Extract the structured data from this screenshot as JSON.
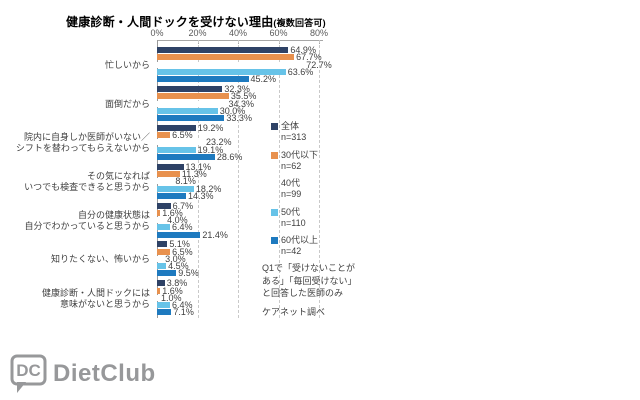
{
  "title": {
    "main": "健康診断・人間ドックを受けない理由",
    "suffix": "(複数回答可)"
  },
  "chart_data": {
    "type": "bar",
    "orientation": "horizontal",
    "title": "健康診断・人間ドックを受けない理由(複数回答可)",
    "xlim": [
      0,
      80
    ],
    "x_ticks": [
      "0%",
      "20%",
      "40%",
      "60%",
      "80%"
    ],
    "grid": "dashed-vertical",
    "legend_position": "right",
    "categories": [
      {
        "lines": [
          "忙しいから"
        ]
      },
      {
        "lines": [
          "面倒だから"
        ]
      },
      {
        "lines": [
          "院内に自身しか医師がいない／",
          "シフトを替わってもらえないから"
        ]
      },
      {
        "lines": [
          "その気になれば",
          "いつでも検査できると思うから"
        ]
      },
      {
        "lines": [
          "自分の健康状態は",
          "自分でわかっていると思うから"
        ]
      },
      {
        "lines": [
          "知りたくない、怖いから"
        ]
      },
      {
        "lines": [
          "健康診断・人間ドックには",
          "意味がないと思うから"
        ]
      }
    ],
    "series": [
      {
        "name": "全体",
        "n_label": "n=313",
        "color": "#2e4266",
        "values": [
          64.9,
          32.3,
          19.2,
          13.1,
          6.7,
          5.1,
          3.8
        ]
      },
      {
        "name": "30代以下",
        "n_label": "n=62",
        "color": "#e8914e",
        "values": [
          67.7,
          35.5,
          6.5,
          11.3,
          1.6,
          6.5,
          1.6
        ]
      },
      {
        "name": "40代",
        "n_label": "n=99",
        "color": "#ffffff",
        "values": [
          72.7,
          34.3,
          23.2,
          8.1,
          4.0,
          3.0,
          1.0
        ]
      },
      {
        "name": "50代",
        "n_label": "n=110",
        "color": "#67c3e8",
        "values": [
          63.6,
          30.0,
          19.1,
          18.2,
          6.4,
          4.5,
          6.4
        ]
      },
      {
        "name": "60代以上",
        "n_label": "n=42",
        "color": "#1e7abf",
        "values": [
          45.2,
          33.3,
          28.6,
          14.3,
          21.4,
          9.5,
          7.1
        ]
      }
    ]
  },
  "notes": {
    "lines": [
      "Q1で「受けないことが",
      "ある」「毎回受けない」",
      "と回答した医師のみ"
    ],
    "source": "ケアネット調べ"
  },
  "logo": {
    "icon": "DC",
    "text": "DietClub"
  },
  "colors": {
    "overall": "#2e4266",
    "under30s": "#e8914e",
    "forties": "#ffffff",
    "fifties": "#67c3e8",
    "over60s": "#1e7abf",
    "logo_gray": "#97989a"
  }
}
